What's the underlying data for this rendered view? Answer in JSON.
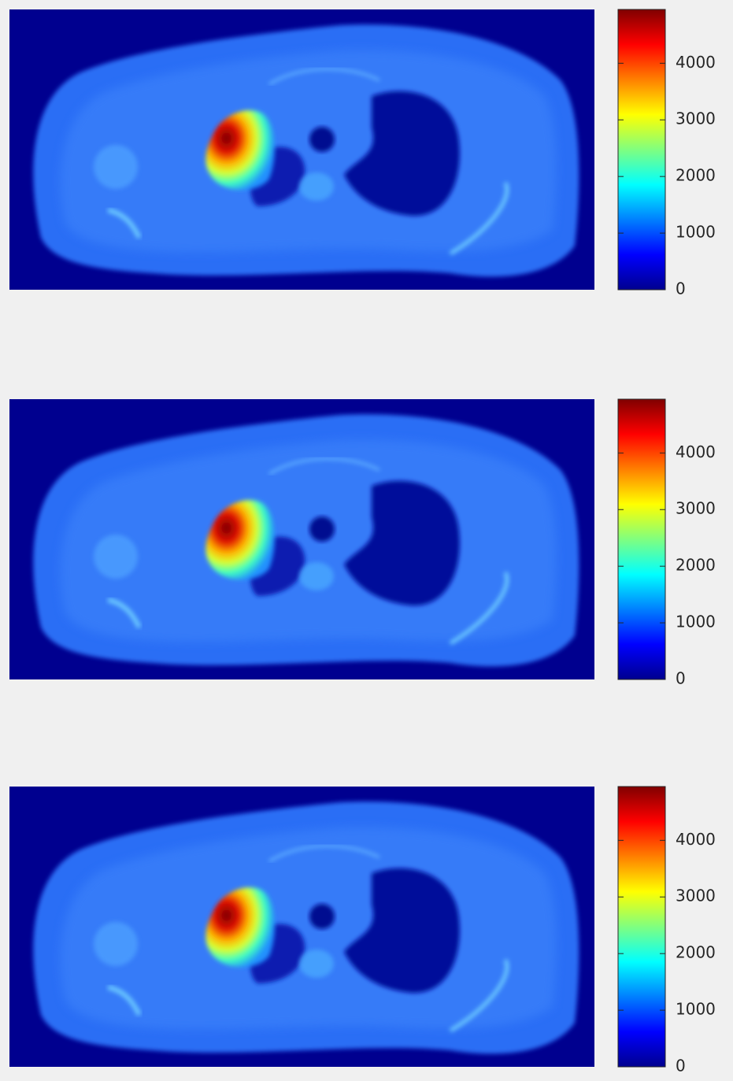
{
  "chart_data": [
    {
      "type": "image",
      "ylim": [
        0,
        4950
      ],
      "yticks": [
        0,
        1000,
        2000,
        3000,
        4000
      ]
    },
    {
      "type": "image",
      "ylim": [
        0,
        4950
      ],
      "yticks": [
        0,
        1000,
        2000,
        3000,
        4000
      ]
    },
    {
      "type": "image",
      "ylim": [
        0,
        4950
      ],
      "yticks": [
        0,
        1000,
        2000,
        3000,
        4000
      ]
    }
  ]
}
